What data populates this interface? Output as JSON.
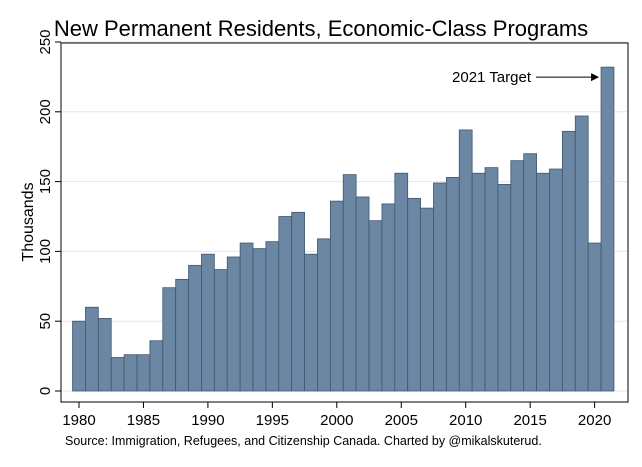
{
  "chart_data": {
    "type": "bar",
    "title": "New Permanent Residents, Economic-Class Programs",
    "ylabel": "Thousands",
    "xlabel": "",
    "source": "Source: Immigration, Refugees, and Citizenship Canada. Charted by @mikalskuterud.",
    "ylim": [
      0,
      250
    ],
    "y_ticks": [
      0,
      50,
      100,
      150,
      200,
      250
    ],
    "x_ticks": [
      1980,
      1985,
      1990,
      1995,
      2000,
      2005,
      2010,
      2015,
      2020
    ],
    "grid": true,
    "x": [
      1980,
      1981,
      1982,
      1983,
      1984,
      1985,
      1986,
      1987,
      1988,
      1989,
      1990,
      1991,
      1992,
      1993,
      1994,
      1995,
      1996,
      1997,
      1998,
      1999,
      2000,
      2001,
      2002,
      2003,
      2004,
      2005,
      2006,
      2007,
      2008,
      2009,
      2010,
      2011,
      2012,
      2013,
      2014,
      2015,
      2016,
      2017,
      2018,
      2019,
      2020,
      2021
    ],
    "values": [
      50,
      60,
      52,
      24,
      26,
      26,
      36,
      74,
      80,
      90,
      98,
      87,
      96,
      106,
      102,
      107,
      125,
      128,
      98,
      109,
      136,
      155,
      139,
      122,
      134,
      156,
      138,
      131,
      149,
      153,
      187,
      156,
      160,
      148,
      165,
      170,
      156,
      159,
      186,
      197,
      106,
      232
    ],
    "annotation": {
      "text": "2021 Target",
      "x": 2021,
      "y": 222
    },
    "bar_color": "#6b87a3",
    "bar_edge": "#3f5870"
  }
}
